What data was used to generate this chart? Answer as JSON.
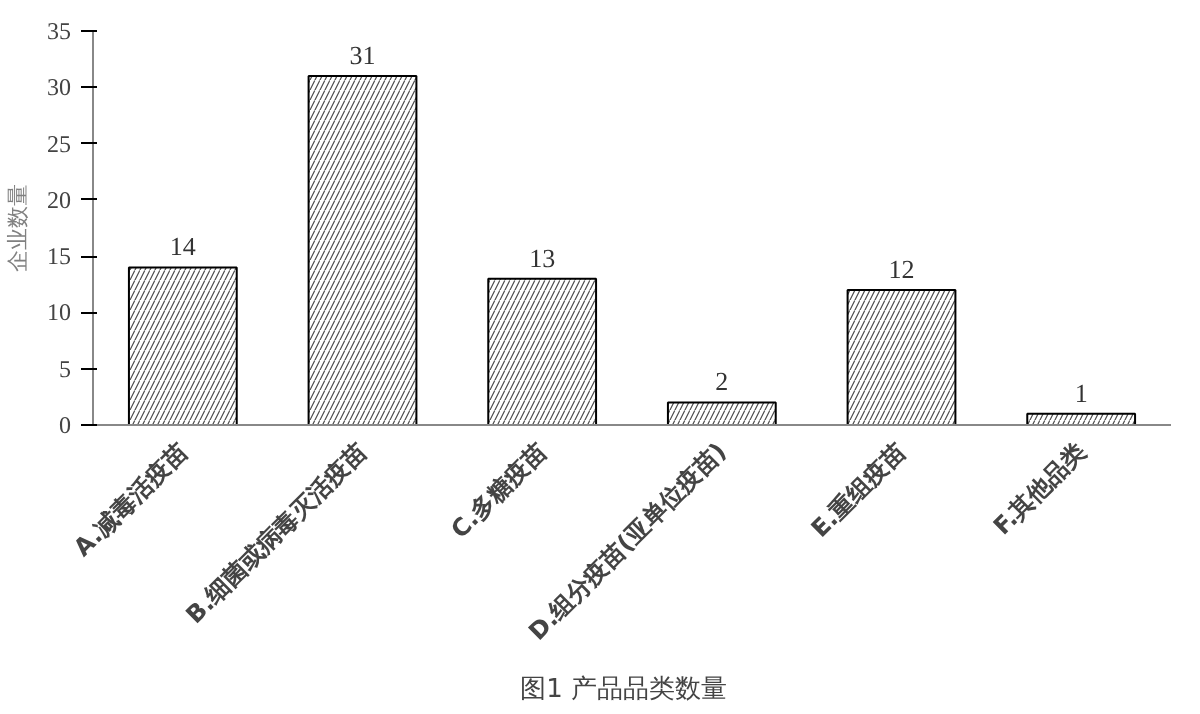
{
  "chart_data": {
    "type": "bar",
    "title": "图1   产品品类数量",
    "ylabel": "企业数量",
    "categories": [
      "A.减毒活疫苗",
      "B.细菌或病毒灭活疫苗",
      "C.多糖疫苗",
      "D.组分疫苗(亚单位疫苗)",
      "E.重组疫苗",
      "F.其他品类"
    ],
    "values": [
      14,
      31,
      13,
      2,
      12,
      1
    ],
    "color": "#000000",
    "ylim": [
      0,
      35
    ],
    "yticks": [
      0,
      5,
      10,
      15,
      20,
      25,
      30,
      35
    ],
    "grid": false,
    "data_labels": true
  }
}
